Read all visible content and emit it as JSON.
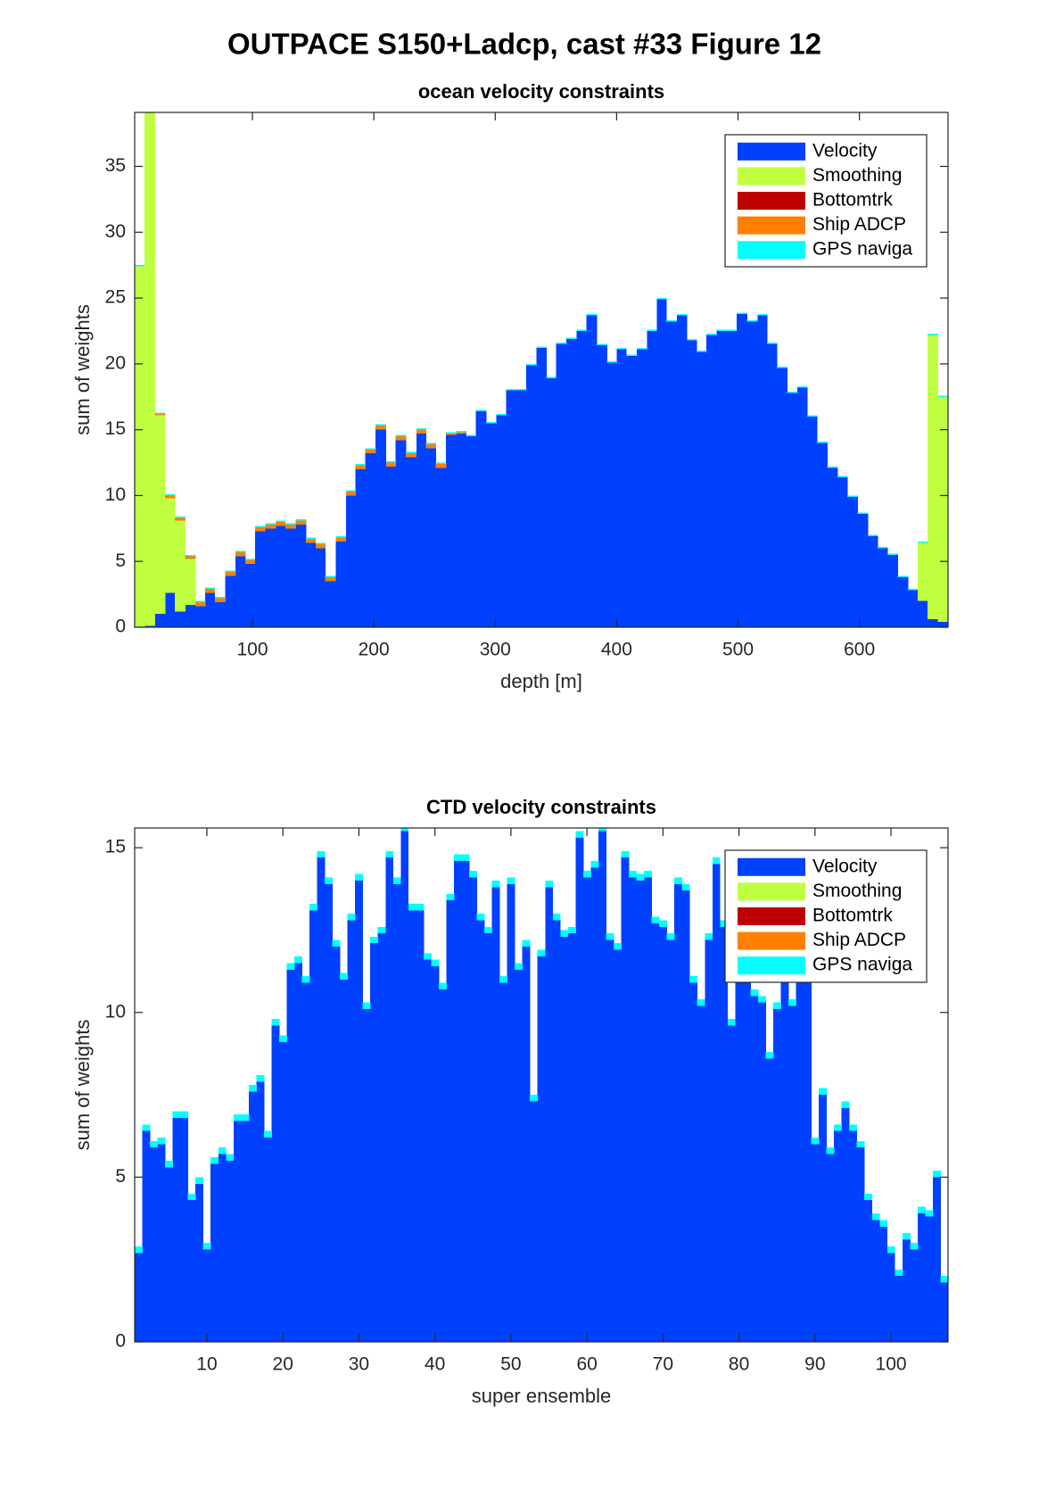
{
  "title": "OUTPACE S150+Ladcp, cast #33  Figure 12",
  "chart_data": [
    {
      "type": "bar",
      "stacked": true,
      "title": "ocean velocity constraints",
      "xlabel": "depth [m]",
      "ylabel": "sum of weights",
      "x": [
        7,
        15,
        24,
        32,
        40,
        49,
        57,
        65,
        73,
        82,
        90,
        98,
        106,
        115,
        123,
        131,
        140,
        148,
        156,
        164,
        173,
        181,
        189,
        197,
        206,
        214,
        222,
        231,
        239,
        247,
        255,
        264,
        272,
        280,
        288,
        297,
        305,
        313,
        321,
        330,
        338,
        346,
        354,
        363,
        371,
        379,
        388,
        396,
        404,
        412,
        421,
        429,
        437,
        445,
        454,
        462,
        470,
        478,
        487,
        495,
        503,
        512,
        520,
        528,
        536,
        545,
        553,
        561,
        569,
        578,
        586,
        594,
        603,
        611,
        619,
        627,
        636,
        644,
        652,
        660,
        669
      ],
      "xlim": [
        3,
        673
      ],
      "xticks": [
        100,
        200,
        300,
        400,
        500,
        600
      ],
      "ylim": [
        0,
        39.1
      ],
      "yticks": [
        0,
        5,
        10,
        15,
        20,
        25,
        30,
        35
      ],
      "legend": "upper right",
      "series": [
        {
          "name": "Velocity",
          "color": "#0040ff",
          "values": [
            0,
            0.1,
            1.0,
            2.6,
            1.2,
            1.7,
            1.6,
            2.6,
            1.9,
            3.9,
            5.4,
            4.8,
            7.3,
            7.5,
            7.7,
            7.5,
            7.8,
            6.4,
            6.0,
            3.5,
            6.5,
            10.0,
            12.0,
            13.2,
            15.0,
            12.2,
            14.2,
            12.9,
            14.7,
            13.6,
            12.1,
            14.6,
            14.7,
            14.5,
            16.4,
            15.5,
            16.1,
            18.0,
            18.0,
            19.9,
            21.2,
            18.9,
            21.5,
            21.9,
            22.5,
            23.7,
            21.4,
            20.1,
            21.1,
            20.6,
            21.1,
            22.5,
            24.9,
            23.2,
            23.7,
            21.8,
            20.9,
            22.2,
            22.5,
            22.5,
            23.8,
            23.2,
            23.7,
            21.5,
            19.7,
            17.8,
            18.2,
            16.0,
            14.0,
            12.1,
            11.4,
            9.9,
            8.6,
            6.9,
            6.0,
            5.5,
            3.8,
            2.8,
            2.0,
            0.6,
            0.4
          ]
        },
        {
          "name": "Smoothing",
          "color": "#bfff40",
          "values": [
            27.4,
            39.3,
            15.1,
            7.2,
            6.9,
            3.5,
            0,
            0,
            0,
            0,
            0,
            0,
            0,
            0,
            0,
            0,
            0,
            0,
            0,
            0,
            0,
            0,
            0,
            0,
            0,
            0,
            0,
            0,
            0,
            0,
            0,
            0,
            0,
            0,
            0,
            0,
            0,
            0,
            0,
            0,
            0,
            0,
            0,
            0,
            0,
            0,
            0,
            0,
            0,
            0,
            0,
            0,
            0,
            0,
            0,
            0,
            0,
            0,
            0,
            0,
            0,
            0,
            0,
            0,
            0,
            0,
            0,
            0,
            0,
            0,
            0,
            0,
            0,
            0,
            0,
            0,
            0,
            0,
            4.4,
            21.6,
            17.1
          ]
        },
        {
          "name": "Bottomtrk",
          "color": "#bf0000",
          "values": [
            0,
            0,
            0,
            0,
            0,
            0,
            0,
            0,
            0,
            0,
            0,
            0,
            0,
            0,
            0,
            0,
            0,
            0,
            0,
            0,
            0,
            0,
            0,
            0,
            0,
            0,
            0,
            0,
            0,
            0,
            0,
            0,
            0,
            0,
            0,
            0,
            0,
            0,
            0,
            0,
            0,
            0,
            0,
            0,
            0,
            0,
            0,
            0,
            0,
            0,
            0,
            0,
            0,
            0,
            0,
            0,
            0,
            0,
            0,
            0,
            0,
            0,
            0,
            0,
            0,
            0,
            0,
            0,
            0,
            0,
            0,
            0,
            0,
            0,
            0,
            0,
            0,
            0,
            0,
            0,
            0
          ]
        },
        {
          "name": "Ship ADCP",
          "color": "#ff8000",
          "values": [
            0,
            0,
            0.1,
            0.2,
            0.2,
            0.2,
            0.3,
            0.3,
            0.3,
            0.3,
            0.3,
            0.3,
            0.3,
            0.3,
            0.3,
            0.3,
            0.3,
            0.3,
            0.3,
            0.3,
            0.3,
            0.3,
            0.3,
            0.3,
            0.3,
            0.3,
            0.3,
            0.3,
            0.3,
            0.3,
            0.3,
            0.1,
            0.1,
            0,
            0,
            0,
            0,
            0,
            0,
            0,
            0,
            0,
            0,
            0,
            0,
            0,
            0,
            0,
            0,
            0,
            0,
            0,
            0,
            0,
            0,
            0,
            0,
            0,
            0,
            0,
            0,
            0,
            0,
            0,
            0,
            0,
            0,
            0,
            0,
            0,
            0,
            0,
            0,
            0,
            0,
            0,
            0,
            0,
            0,
            0,
            0
          ]
        },
        {
          "name": "GPS naviga",
          "color": "#00ffff",
          "values": [
            0.1,
            0.1,
            0.1,
            0.1,
            0.1,
            0.1,
            0.1,
            0.1,
            0.1,
            0.1,
            0.1,
            0.1,
            0.1,
            0.1,
            0.1,
            0.1,
            0.1,
            0.1,
            0.1,
            0.1,
            0.1,
            0.1,
            0.1,
            0.1,
            0.1,
            0.1,
            0.1,
            0.1,
            0.1,
            0.1,
            0.1,
            0.1,
            0.1,
            0.1,
            0.1,
            0.1,
            0.1,
            0.1,
            0.1,
            0.1,
            0.1,
            0.1,
            0.1,
            0.1,
            0.1,
            0.1,
            0.1,
            0.1,
            0.1,
            0.1,
            0.1,
            0.1,
            0.1,
            0.1,
            0.1,
            0.1,
            0.1,
            0.1,
            0.1,
            0.1,
            0.1,
            0.1,
            0.1,
            0.1,
            0.1,
            0.1,
            0.1,
            0.1,
            0.1,
            0.1,
            0.1,
            0.1,
            0.1,
            0.1,
            0.1,
            0.1,
            0.1,
            0.1,
            0.1,
            0.1,
            0.1
          ]
        }
      ]
    },
    {
      "type": "bar",
      "stacked": true,
      "title": "CTD velocity constraints",
      "xlabel": "super ensemble",
      "ylabel": "sum of weights",
      "x": [
        1,
        2,
        3,
        4,
        5,
        6,
        7,
        8,
        9,
        10,
        11,
        12,
        13,
        14,
        15,
        16,
        17,
        18,
        19,
        20,
        21,
        22,
        23,
        24,
        25,
        26,
        27,
        28,
        29,
        30,
        31,
        32,
        33,
        34,
        35,
        36,
        37,
        38,
        39,
        40,
        41,
        42,
        43,
        44,
        45,
        46,
        47,
        48,
        49,
        50,
        51,
        52,
        53,
        54,
        55,
        56,
        57,
        58,
        59,
        60,
        61,
        62,
        63,
        64,
        65,
        66,
        67,
        68,
        69,
        70,
        71,
        72,
        73,
        74,
        75,
        76,
        77,
        78,
        79,
        80,
        81,
        82,
        83,
        84,
        85,
        86,
        87,
        88,
        89,
        90,
        91,
        92,
        93,
        94,
        95,
        96,
        97,
        98,
        99,
        100,
        101,
        102,
        103,
        104,
        105,
        106,
        107
      ],
      "xlim": [
        0.5,
        107.5
      ],
      "xticks": [
        10,
        20,
        30,
        40,
        50,
        60,
        70,
        80,
        90,
        100
      ],
      "ylim": [
        0,
        15.6
      ],
      "yticks": [
        0,
        5,
        10,
        15
      ],
      "legend": "upper right",
      "series": [
        {
          "name": "Velocity",
          "color": "#0040ff",
          "values": [
            2.7,
            6.4,
            5.9,
            6.0,
            5.3,
            6.8,
            6.8,
            4.3,
            4.8,
            2.8,
            5.4,
            5.7,
            5.5,
            6.7,
            6.7,
            7.6,
            7.9,
            6.2,
            9.6,
            9.1,
            11.3,
            11.5,
            10.9,
            13.1,
            14.7,
            13.9,
            12.0,
            11.0,
            12.8,
            14.0,
            10.1,
            12.1,
            12.4,
            14.7,
            13.9,
            15.5,
            13.1,
            13.1,
            11.6,
            11.4,
            10.7,
            13.4,
            14.6,
            14.6,
            14.1,
            12.8,
            12.4,
            13.8,
            10.9,
            13.9,
            11.3,
            12.0,
            7.3,
            11.7,
            13.8,
            12.8,
            12.3,
            12.4,
            15.3,
            14.1,
            14.4,
            15.5,
            12.2,
            11.9,
            14.7,
            14.1,
            14.0,
            14.1,
            12.7,
            12.6,
            12.2,
            13.9,
            13.7,
            10.9,
            10.2,
            12.2,
            14.5,
            12.6,
            9.6,
            11.6,
            11.1,
            10.5,
            10.3,
            8.6,
            10.1,
            11.0,
            10.2,
            11.8,
            11.6,
            6.0,
            7.5,
            5.7,
            6.4,
            7.1,
            6.4,
            5.9,
            4.3,
            3.7,
            3.5,
            2.7,
            2.0,
            3.1,
            2.8,
            3.9,
            3.8,
            5.0,
            1.8
          ]
        },
        {
          "name": "Smoothing",
          "color": "#bfff40",
          "values": [
            0,
            0,
            0,
            0,
            0,
            0,
            0,
            0,
            0,
            0,
            0,
            0,
            0,
            0,
            0,
            0,
            0,
            0,
            0,
            0,
            0,
            0,
            0,
            0,
            0,
            0,
            0,
            0,
            0,
            0,
            0,
            0,
            0,
            0,
            0,
            0,
            0,
            0,
            0,
            0,
            0,
            0,
            0,
            0,
            0,
            0,
            0,
            0,
            0,
            0,
            0,
            0,
            0,
            0,
            0,
            0,
            0,
            0,
            0,
            0,
            0,
            0,
            0,
            0,
            0,
            0,
            0,
            0,
            0,
            0,
            0,
            0,
            0,
            0,
            0,
            0,
            0,
            0,
            0,
            0,
            0,
            0,
            0,
            0,
            0,
            0,
            0,
            0,
            0,
            0,
            0,
            0,
            0,
            0,
            0,
            0,
            0,
            0,
            0,
            0,
            0,
            0,
            0,
            0,
            0,
            0,
            0
          ]
        },
        {
          "name": "Bottomtrk",
          "color": "#bf0000",
          "values": [
            0,
            0,
            0,
            0,
            0,
            0,
            0,
            0,
            0,
            0,
            0,
            0,
            0,
            0,
            0,
            0,
            0,
            0,
            0,
            0,
            0,
            0,
            0,
            0,
            0,
            0,
            0,
            0,
            0,
            0,
            0,
            0,
            0,
            0,
            0,
            0,
            0,
            0,
            0,
            0,
            0,
            0,
            0,
            0,
            0,
            0,
            0,
            0,
            0,
            0,
            0,
            0,
            0,
            0,
            0,
            0,
            0,
            0,
            0,
            0,
            0,
            0,
            0,
            0,
            0,
            0,
            0,
            0,
            0,
            0,
            0,
            0,
            0,
            0,
            0,
            0,
            0,
            0,
            0,
            0,
            0,
            0,
            0,
            0,
            0,
            0,
            0,
            0,
            0,
            0,
            0,
            0,
            0,
            0,
            0,
            0,
            0,
            0,
            0,
            0,
            0,
            0,
            0,
            0,
            0,
            0,
            0
          ]
        },
        {
          "name": "Ship ADCP",
          "color": "#ff8000",
          "values": [
            0,
            0,
            0,
            0,
            0,
            0,
            0,
            0,
            0,
            0,
            0,
            0,
            0,
            0,
            0,
            0,
            0,
            0,
            0,
            0,
            0,
            0,
            0,
            0,
            0,
            0,
            0,
            0,
            0,
            0,
            0,
            0,
            0,
            0,
            0,
            0,
            0,
            0,
            0,
            0,
            0,
            0,
            0,
            0,
            0,
            0,
            0,
            0,
            0,
            0,
            0,
            0,
            0,
            0,
            0,
            0,
            0,
            0,
            0,
            0,
            0,
            0,
            0,
            0,
            0,
            0,
            0,
            0,
            0,
            0,
            0,
            0,
            0,
            0,
            0,
            0,
            0,
            0,
            0,
            0,
            0,
            0,
            0,
            0,
            0,
            0,
            0,
            0,
            0,
            0,
            0,
            0,
            0,
            0,
            0,
            0,
            0,
            0,
            0,
            0,
            0,
            0,
            0,
            0,
            0,
            0,
            0
          ]
        },
        {
          "name": "GPS naviga",
          "color": "#00ffff",
          "values": [
            0.2,
            0.2,
            0.2,
            0.2,
            0.2,
            0.2,
            0.2,
            0.2,
            0.2,
            0.2,
            0.2,
            0.2,
            0.2,
            0.2,
            0.2,
            0.2,
            0.2,
            0.2,
            0.2,
            0.2,
            0.2,
            0.2,
            0.2,
            0.2,
            0.2,
            0.2,
            0.2,
            0.2,
            0.2,
            0.2,
            0.2,
            0.2,
            0.2,
            0.2,
            0.2,
            0.2,
            0.2,
            0.2,
            0.2,
            0.2,
            0.2,
            0.2,
            0.2,
            0.2,
            0.2,
            0.2,
            0.2,
            0.2,
            0.2,
            0.2,
            0.2,
            0.2,
            0.2,
            0.2,
            0.2,
            0.2,
            0.2,
            0.2,
            0.2,
            0.2,
            0.2,
            0.2,
            0.2,
            0.2,
            0.2,
            0.2,
            0.2,
            0.2,
            0.2,
            0.2,
            0.2,
            0.2,
            0.2,
            0.2,
            0.2,
            0.2,
            0.2,
            0.2,
            0.2,
            0.2,
            0.2,
            0.2,
            0.2,
            0.2,
            0.2,
            0.2,
            0.2,
            0.2,
            0.2,
            0.2,
            0.2,
            0.2,
            0.2,
            0.2,
            0.2,
            0.2,
            0.2,
            0.2,
            0.2,
            0.2,
            0.2,
            0.2,
            0.2,
            0.2,
            0.2,
            0.2,
            0.2
          ]
        }
      ]
    }
  ]
}
